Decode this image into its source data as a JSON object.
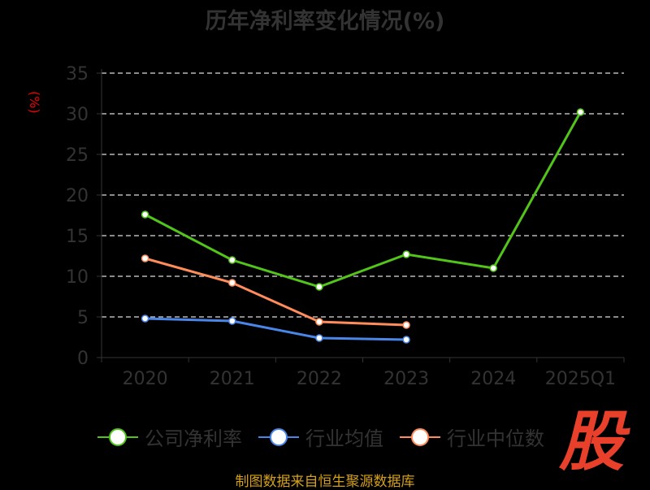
{
  "chart_data": {
    "type": "line",
    "title": "历年净利率变化情况(%)",
    "ylabel": "(%)",
    "xlabel": "",
    "categories": [
      "2020",
      "2021",
      "2022",
      "2023",
      "2024",
      "2025Q1"
    ],
    "ylim": [
      0,
      35
    ],
    "yticks": [
      "0",
      "5",
      "10",
      "15",
      "20",
      "25",
      "30",
      "35"
    ],
    "grid": true,
    "legend_position": "bottom",
    "series": [
      {
        "name": "公司净利率",
        "color": "#52c41a",
        "values": [
          17.6,
          12.0,
          8.7,
          12.7,
          11.0,
          30.2
        ]
      },
      {
        "name": "行业均值",
        "color": "#4a86e8",
        "values": [
          4.8,
          4.5,
          2.4,
          2.2,
          null,
          null
        ]
      },
      {
        "name": "行业中位数",
        "color": "#ff8c5a",
        "values": [
          12.2,
          9.2,
          4.4,
          4.0,
          null,
          null
        ]
      }
    ]
  },
  "logo_text": "股",
  "source": "制图数据来自恒生聚源数据库"
}
